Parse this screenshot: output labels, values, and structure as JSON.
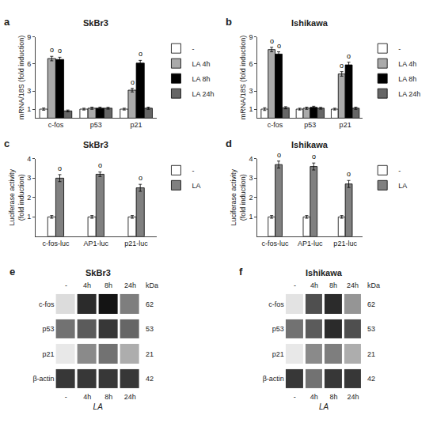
{
  "chart_data": [
    {
      "type": "bar",
      "label": "a",
      "title": "SkBr3",
      "ylabel": "mRNA/18S (fold induction)",
      "categories": [
        "c-fos",
        "p53",
        "p21"
      ],
      "series": [
        {
          "name": "-",
          "color": "white",
          "values": [
            1.0,
            1.0,
            1.0
          ],
          "errors": [
            0.12,
            0.1,
            0.1
          ]
        },
        {
          "name": "LA 4h",
          "color": "#aaaaaa",
          "values": [
            6.6,
            1.1,
            3.1
          ],
          "errors": [
            0.25,
            0.12,
            0.2
          ]
        },
        {
          "name": "LA 8h",
          "color": "black",
          "values": [
            6.5,
            1.1,
            6.1
          ],
          "errors": [
            0.25,
            0.12,
            0.3
          ]
        },
        {
          "name": "LA 24h",
          "color": "#666666",
          "values": [
            0.8,
            1.1,
            1.1
          ],
          "errors": [
            0.1,
            0.1,
            0.12
          ]
        }
      ],
      "ylim": [
        0,
        9
      ],
      "yticks": [
        1,
        3,
        6,
        9
      ],
      "grid": false,
      "legend": "upper right",
      "annotations": [
        {
          "text": "o",
          "category": "c-fos",
          "series": "LA 4h"
        },
        {
          "text": "o",
          "category": "c-fos",
          "series": "LA 8h"
        },
        {
          "text": "o",
          "category": "p21",
          "series": "LA 4h"
        },
        {
          "text": "o",
          "category": "p21",
          "series": "LA 8h"
        }
      ]
    },
    {
      "type": "bar",
      "label": "b",
      "title": "Ishikawa",
      "ylabel": "mRNA/18S (fold induction)",
      "categories": [
        "c-fos",
        "p53",
        "p21"
      ],
      "series": [
        {
          "name": "-",
          "color": "white",
          "values": [
            1.0,
            1.0,
            1.0
          ],
          "errors": [
            0.15,
            0.1,
            0.1
          ]
        },
        {
          "name": "LA 4h",
          "color": "#aaaaaa",
          "values": [
            7.6,
            1.1,
            4.9
          ],
          "errors": [
            0.25,
            0.12,
            0.25
          ]
        },
        {
          "name": "LA 8h",
          "color": "black",
          "values": [
            7.1,
            1.2,
            5.9
          ],
          "errors": [
            0.25,
            0.12,
            0.3
          ]
        },
        {
          "name": "LA 24h",
          "color": "#666666",
          "values": [
            1.15,
            1.1,
            1.1
          ],
          "errors": [
            0.12,
            0.1,
            0.12
          ]
        }
      ],
      "ylim": [
        0,
        9
      ],
      "yticks": [
        1,
        3,
        6,
        9
      ],
      "grid": false,
      "legend": "upper right",
      "annotations": [
        {
          "text": "o",
          "category": "c-fos",
          "series": "LA 4h"
        },
        {
          "text": "o",
          "category": "c-fos",
          "series": "LA 8h"
        },
        {
          "text": "o",
          "category": "p21",
          "series": "LA 4h"
        },
        {
          "text": "o",
          "category": "p21",
          "series": "LA 8h"
        }
      ]
    },
    {
      "type": "bar",
      "label": "c",
      "title": "SkBr3",
      "ylabel": "Luciferase activity\n(fold induction)",
      "categories": [
        "c-fos-luc",
        "AP1-luc",
        "p21-luc"
      ],
      "series": [
        {
          "name": "-",
          "color": "white",
          "values": [
            1.0,
            1.0,
            1.0
          ],
          "errors": [
            0.07,
            0.07,
            0.07
          ]
        },
        {
          "name": "LA",
          "color": "#808080",
          "values": [
            3.0,
            3.2,
            2.5
          ],
          "errors": [
            0.18,
            0.12,
            0.18
          ]
        }
      ],
      "ylim": [
        0,
        4
      ],
      "yticks": [
        1,
        2,
        3,
        4
      ],
      "grid": false,
      "legend": "upper right",
      "annotations": [
        {
          "text": "o",
          "category": "c-fos-luc",
          "series": "LA"
        },
        {
          "text": "o",
          "category": "AP1-luc",
          "series": "LA"
        },
        {
          "text": "o",
          "category": "p21-luc",
          "series": "LA"
        }
      ]
    },
    {
      "type": "bar",
      "label": "d",
      "title": "Ishikawa",
      "ylabel": "Luciferase activity\n(fold induction)",
      "categories": [
        "c-fos-luc",
        "AP1-luc",
        "p21-luc"
      ],
      "series": [
        {
          "name": "-",
          "color": "white",
          "values": [
            1.0,
            1.0,
            1.0
          ],
          "errors": [
            0.07,
            0.07,
            0.07
          ]
        },
        {
          "name": "LA",
          "color": "#808080",
          "values": [
            3.7,
            3.6,
            2.7
          ],
          "errors": [
            0.18,
            0.18,
            0.18
          ]
        }
      ],
      "ylim": [
        0,
        4
      ],
      "yticks": [
        1,
        2,
        3,
        4
      ],
      "grid": false,
      "legend": "upper right",
      "annotations": [
        {
          "text": "o",
          "category": "c-fos-luc",
          "series": "LA"
        },
        {
          "text": "o",
          "category": "AP1-luc",
          "series": "LA"
        },
        {
          "text": "o",
          "category": "p21-luc",
          "series": "LA"
        }
      ]
    },
    {
      "type": "heatmap",
      "label": "e",
      "title": "SkBr3",
      "xlabel": "LA",
      "categories": [
        "-",
        "4h",
        "8h",
        "24h"
      ],
      "y_categories": [
        "c-fos",
        "p53",
        "p21",
        "β-actin"
      ],
      "cells": [
        [
          0.15,
          0.9,
          1.0,
          0.55
        ],
        [
          0.6,
          0.7,
          0.85,
          0.65
        ],
        [
          0.1,
          0.5,
          0.6,
          0.35
        ],
        [
          0.85,
          0.85,
          0.85,
          0.85
        ]
      ],
      "zlim": [
        0,
        1
      ],
      "colors": [
        "#ffffff",
        "#141414"
      ],
      "grid": false,
      "annotations": [
        {
          "text": "kDa"
        },
        {
          "text": "62",
          "y": "c-fos"
        },
        {
          "text": "53",
          "y": "p53"
        },
        {
          "text": "21",
          "y": "p21"
        },
        {
          "text": "42",
          "y": "β-actin"
        }
      ]
    },
    {
      "type": "heatmap",
      "label": "f",
      "title": "Ishikawa",
      "xlabel": "LA",
      "categories": [
        "-",
        "4h",
        "8h",
        "24h"
      ],
      "y_categories": [
        "c-fos",
        "p53",
        "p21",
        "β-actin"
      ],
      "cells": [
        [
          0.12,
          0.75,
          0.9,
          0.45
        ],
        [
          0.6,
          0.7,
          0.9,
          0.75
        ],
        [
          0.1,
          0.5,
          0.55,
          0.35
        ],
        [
          0.85,
          0.6,
          0.85,
          0.85
        ]
      ],
      "zlim": [
        0,
        1
      ],
      "colors": [
        "#ffffff",
        "#141414"
      ],
      "grid": false,
      "annotations": [
        {
          "text": "kDa"
        },
        {
          "text": "62",
          "y": "c-fos"
        },
        {
          "text": "53",
          "y": "p53"
        },
        {
          "text": "21",
          "y": "p21"
        },
        {
          "text": "42",
          "y": "β-actin"
        }
      ]
    }
  ]
}
